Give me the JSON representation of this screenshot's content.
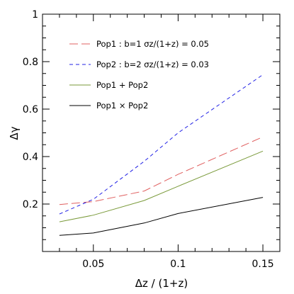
{
  "chart_data": {
    "type": "line",
    "xlabel": "Δz / (1+z)",
    "ylabel": "Δγ",
    "xlim": [
      0.02,
      0.16
    ],
    "ylim": [
      0.0,
      1.0
    ],
    "x_ticks": [
      "0.05",
      "0.1",
      "0.15"
    ],
    "y_ticks": [
      "0.2",
      "0.4",
      "0.6",
      "0.8",
      "1"
    ],
    "grid": false,
    "legend_position": "top-left",
    "series": [
      {
        "name": "Pop1 : b=1 σ_z/(1+z) = 0.05",
        "legend_text": "Pop1 : b=1 σz/(1+z) = 0.05",
        "color": "#e06060",
        "dash": "long-dash",
        "x": [
          0.03,
          0.05,
          0.08,
          0.1,
          0.15
        ],
        "y": [
          0.198,
          0.21,
          0.255,
          0.325,
          0.483
        ]
      },
      {
        "name": "Pop2 : b=2 σ_z/(1+z) = 0.03",
        "legend_text": "Pop2 : b=2 σz/(1+z) = 0.03",
        "color": "#2323e6",
        "dash": "short-dash",
        "x": [
          0.03,
          0.05,
          0.08,
          0.1,
          0.15
        ],
        "y": [
          0.158,
          0.22,
          0.38,
          0.5,
          0.745
        ]
      },
      {
        "name": "Pop1 + Pop2",
        "legend_text": "Pop1 + Pop2",
        "color": "#7a9a3a",
        "dash": "solid",
        "x": [
          0.03,
          0.05,
          0.08,
          0.1,
          0.15
        ],
        "y": [
          0.125,
          0.153,
          0.215,
          0.275,
          0.423
        ]
      },
      {
        "name": "Pop1 × Pop2",
        "legend_text": "Pop1 × Pop2",
        "color": "#000000",
        "dash": "solid",
        "x": [
          0.03,
          0.05,
          0.08,
          0.1,
          0.15
        ],
        "y": [
          0.068,
          0.078,
          0.12,
          0.16,
          0.228
        ]
      }
    ]
  }
}
